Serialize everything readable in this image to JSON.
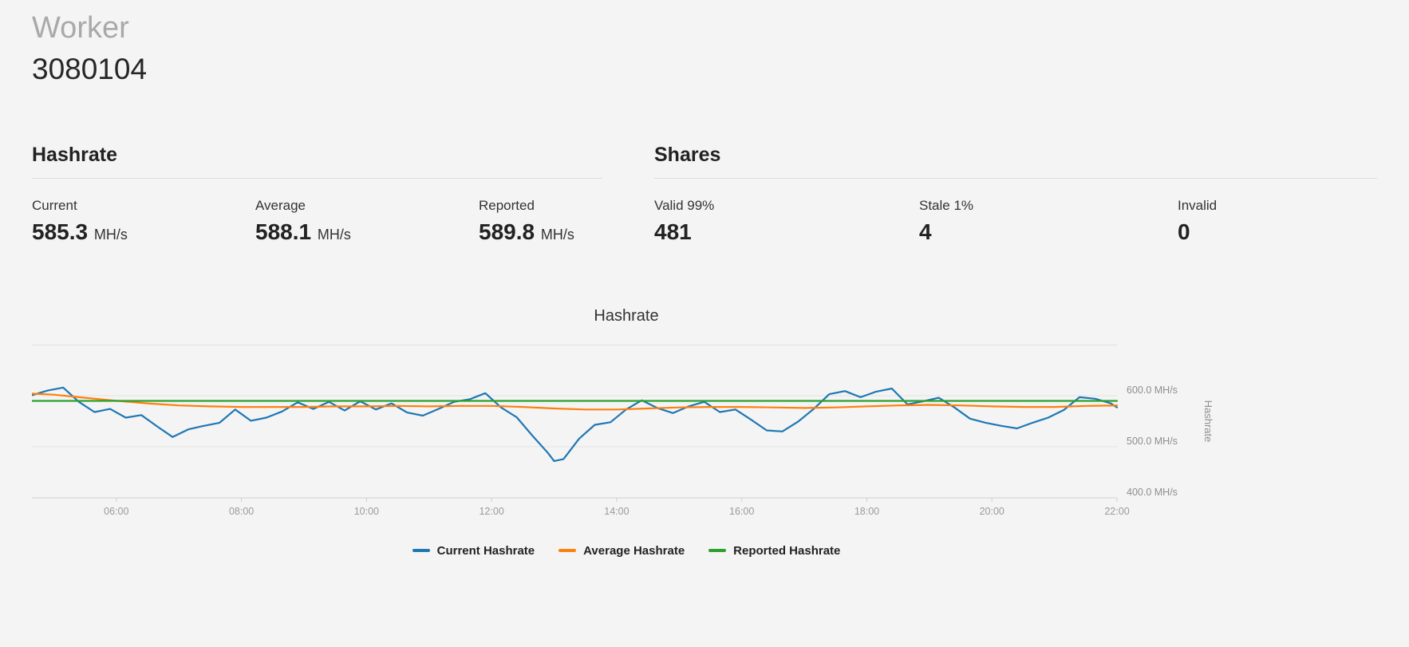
{
  "header": {
    "worker_label": "Worker",
    "worker_id": "3080104"
  },
  "hashrate_panel": {
    "title": "Hashrate",
    "stats": [
      {
        "label": "Current",
        "value": "585.3",
        "unit": "MH/s"
      },
      {
        "label": "Average",
        "value": "588.1",
        "unit": "MH/s"
      },
      {
        "label": "Reported",
        "value": "589.8",
        "unit": "MH/s"
      }
    ]
  },
  "shares_panel": {
    "title": "Shares",
    "stats": [
      {
        "label": "Valid 99%",
        "value": "481"
      },
      {
        "label": "Stale 1%",
        "value": "4"
      },
      {
        "label": "Invalid",
        "value": "0"
      }
    ]
  },
  "chart_data": {
    "type": "line",
    "title": "Hashrate",
    "ylabel": "Hashrate",
    "x_range_hours": [
      4.65,
      22.0
    ],
    "ylim": [
      400,
      700
    ],
    "grid": "horizontal",
    "legend_position": "bottom-center",
    "x_ticks": [
      {
        "hour": 6,
        "label": "06:00"
      },
      {
        "hour": 8,
        "label": "08:00"
      },
      {
        "hour": 10,
        "label": "10:00"
      },
      {
        "hour": 12,
        "label": "12:00"
      },
      {
        "hour": 14,
        "label": "14:00"
      },
      {
        "hour": 16,
        "label": "16:00"
      },
      {
        "hour": 18,
        "label": "18:00"
      },
      {
        "hour": 20,
        "label": "20:00"
      },
      {
        "hour": 22,
        "label": "22:00"
      }
    ],
    "y_gridlines": [
      {
        "value": 400,
        "label": "400.0 MH/s"
      },
      {
        "value": 500,
        "label": "500.0 MH/s"
      },
      {
        "value": 600,
        "label": "600.0 MH/s"
      }
    ],
    "series": [
      {
        "name": "Current Hashrate",
        "color": "#1f77b4",
        "x": [
          4.65,
          4.9,
          5.15,
          5.4,
          5.65,
          5.9,
          6.15,
          6.4,
          6.65,
          6.9,
          7.15,
          7.4,
          7.65,
          7.9,
          8.15,
          8.4,
          8.65,
          8.9,
          9.15,
          9.4,
          9.65,
          9.9,
          10.15,
          10.4,
          10.65,
          10.9,
          11.15,
          11.4,
          11.65,
          11.9,
          12.15,
          12.4,
          12.65,
          12.9,
          13.0,
          13.15,
          13.4,
          13.65,
          13.9,
          14.15,
          14.4,
          14.65,
          14.9,
          15.15,
          15.4,
          15.65,
          15.9,
          16.15,
          16.4,
          16.65,
          16.9,
          17.15,
          17.4,
          17.65,
          17.9,
          18.15,
          18.4,
          18.65,
          18.9,
          19.15,
          19.4,
          19.65,
          19.9,
          20.15,
          20.4,
          20.65,
          20.9,
          21.15,
          21.4,
          21.65,
          21.9,
          22.0
        ],
        "values": [
          601,
          610,
          616,
          588,
          568,
          574,
          557,
          562,
          540,
          519,
          534,
          541,
          547,
          573,
          551,
          557,
          569,
          587,
          574,
          588,
          571,
          589,
          573,
          585,
          567,
          561,
          574,
          588,
          593,
          605,
          577,
          558,
          522,
          488,
          472,
          476,
          516,
          543,
          548,
          573,
          591,
          576,
          566,
          579,
          588,
          568,
          573,
          553,
          532,
          530,
          549,
          574,
          603,
          609,
          597,
          608,
          614,
          583,
          589,
          596,
          577,
          555,
          547,
          541,
          536,
          547,
          557,
          572,
          597,
          594,
          585,
          577
        ]
      },
      {
        "name": "Average Hashrate",
        "color": "#ff7f0e",
        "x": [
          4.65,
          5.0,
          5.5,
          6.0,
          6.5,
          7.0,
          7.5,
          8.0,
          8.5,
          9.0,
          9.5,
          10.0,
          10.5,
          11.0,
          11.5,
          12.0,
          12.5,
          13.0,
          13.5,
          14.0,
          14.5,
          15.0,
          15.5,
          16.0,
          16.5,
          17.0,
          17.5,
          18.0,
          18.5,
          19.0,
          19.5,
          20.0,
          20.5,
          21.0,
          21.5,
          22.0
        ],
        "values": [
          604,
          602,
          596,
          590,
          585,
          581,
          579,
          578,
          578,
          578,
          579,
          579,
          580,
          579,
          580,
          580,
          578,
          575,
          573,
          573,
          575,
          577,
          578,
          578,
          577,
          576,
          577,
          579,
          581,
          582,
          581,
          579,
          578,
          578,
          580,
          581
        ]
      },
      {
        "name": "Reported Hashrate",
        "color": "#2ca02c",
        "x": [
          4.65,
          22.0
        ],
        "values": [
          589.8,
          589.8
        ]
      }
    ]
  }
}
